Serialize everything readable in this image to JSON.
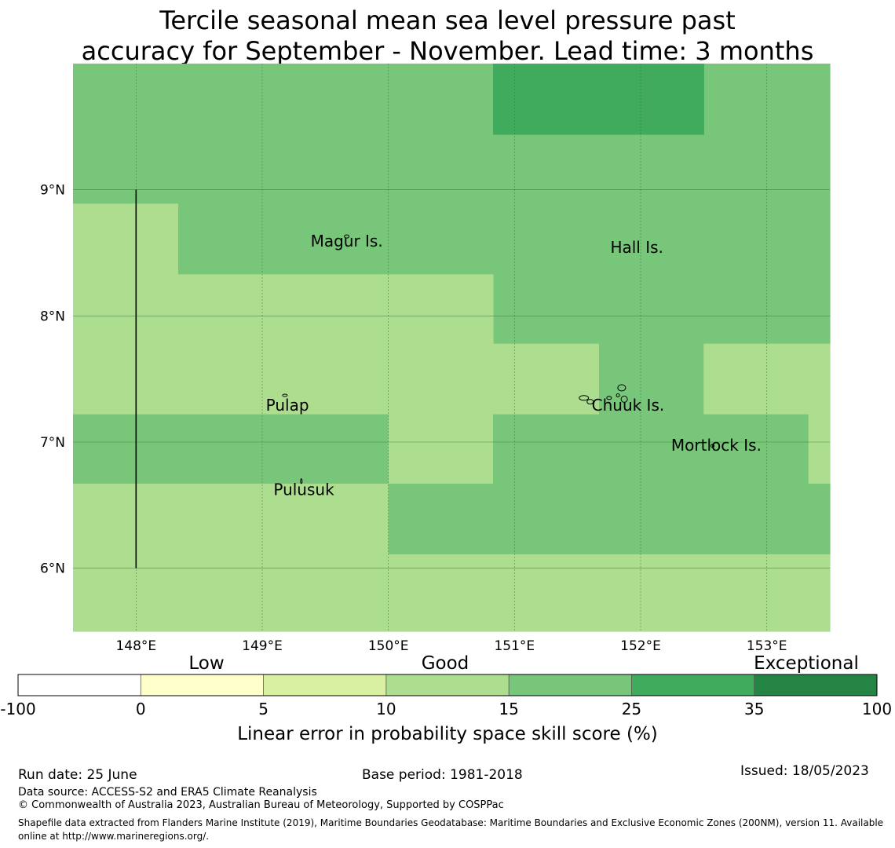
{
  "title_line1": "Tercile seasonal mean sea level pressure past",
  "title_line2": "accuracy for September - November. Lead time: 3 months",
  "colors": {
    "c_-100": "#ffffff",
    "c_0": "#ffffcc",
    "c_5": "#d9f0a3",
    "c_10": "#addd8e",
    "c_15": "#78c679",
    "c_25": "#41ab5d",
    "c_35": "#238443"
  },
  "map": {
    "lon_range": [
      147.5,
      153.5
    ],
    "lat_range": [
      5.5,
      10.0
    ],
    "x_ticks": [
      {
        "lon": 148,
        "label": "148°E"
      },
      {
        "lon": 149,
        "label": "149°E"
      },
      {
        "lon": 150,
        "label": "150°E"
      },
      {
        "lon": 151,
        "label": "151°E"
      },
      {
        "lon": 152,
        "label": "152°E"
      },
      {
        "lon": 153,
        "label": "153°E"
      }
    ],
    "y_ticks": [
      {
        "lat": 9,
        "label": "9°N"
      },
      {
        "lat": 8,
        "label": "8°N"
      },
      {
        "lat": 7,
        "label": "7°N"
      },
      {
        "lat": 6,
        "label": "6°N"
      }
    ],
    "gridlines": true,
    "skill_cells": [
      {
        "lon": [
          147.5,
          151.83
        ],
        "lat": [
          8.89,
          10.0
        ],
        "bin": "15"
      },
      {
        "lon": [
          151.83,
          153.5
        ],
        "lat": [
          7.78,
          10.0
        ],
        "bin": "15"
      },
      {
        "lon": [
          150.83,
          152.5
        ],
        "lat": [
          9.44,
          10.0
        ],
        "bin": "25"
      },
      {
        "lon": [
          148.33,
          151.83
        ],
        "lat": [
          8.33,
          8.89
        ],
        "bin": "15"
      },
      {
        "lon": [
          147.5,
          148.33
        ],
        "lat": [
          8.33,
          8.89
        ],
        "bin": "10"
      },
      {
        "lon": [
          150.83,
          151.83
        ],
        "lat": [
          7.78,
          8.33
        ],
        "bin": "15"
      },
      {
        "lon": [
          147.5,
          150.83
        ],
        "lat": [
          7.22,
          8.33
        ],
        "bin": "10"
      },
      {
        "lon": [
          150.83,
          151.67
        ],
        "lat": [
          7.22,
          7.78
        ],
        "bin": "10"
      },
      {
        "lon": [
          151.67,
          152.5
        ],
        "lat": [
          7.22,
          7.78
        ],
        "bin": "15"
      },
      {
        "lon": [
          152.5,
          153.5
        ],
        "lat": [
          7.22,
          7.78
        ],
        "bin": "10"
      },
      {
        "lon": [
          147.5,
          150.0
        ],
        "lat": [
          6.67,
          7.22
        ],
        "bin": "15"
      },
      {
        "lon": [
          150.0,
          150.83
        ],
        "lat": [
          6.67,
          7.22
        ],
        "bin": "10"
      },
      {
        "lon": [
          150.83,
          153.33
        ],
        "lat": [
          6.67,
          7.22
        ],
        "bin": "15"
      },
      {
        "lon": [
          153.33,
          153.5
        ],
        "lat": [
          6.67,
          7.22
        ],
        "bin": "10"
      },
      {
        "lon": [
          147.5,
          150.0
        ],
        "lat": [
          6.11,
          6.67
        ],
        "bin": "10"
      },
      {
        "lon": [
          150.0,
          153.5
        ],
        "lat": [
          6.11,
          6.67
        ],
        "bin": "15"
      },
      {
        "lon": [
          147.5,
          153.5
        ],
        "lat": [
          5.5,
          6.11
        ],
        "bin": "10"
      }
    ],
    "boundary_line": {
      "lon": 148.0,
      "lat": [
        6.0,
        9.0
      ]
    },
    "places": [
      {
        "name": "Magur Is.",
        "lon": 149.67,
        "lat": 8.55
      },
      {
        "name": "Hall Is.",
        "lon": 151.97,
        "lat": 8.5
      },
      {
        "name": "Pulap",
        "lon": 149.2,
        "lat": 7.25
      },
      {
        "name": "Chuuk Is.",
        "lon": 151.9,
        "lat": 7.25
      },
      {
        "name": "Mortlock Is.",
        "lon": 152.6,
        "lat": 6.93
      },
      {
        "name": "Pulusuk",
        "lon": 149.33,
        "lat": 6.58
      }
    ]
  },
  "colorbar": {
    "category_labels": [
      "Low",
      "Good",
      "Exceptional"
    ],
    "bins": [
      {
        "from": "-100",
        "to": "0",
        "color_key": "c_-100"
      },
      {
        "from": "0",
        "to": "5",
        "color_key": "c_0"
      },
      {
        "from": "5",
        "to": "10",
        "color_key": "c_5"
      },
      {
        "from": "10",
        "to": "15",
        "color_key": "c_10"
      },
      {
        "from": "15",
        "to": "25",
        "color_key": "c_15"
      },
      {
        "from": "25",
        "to": "35",
        "color_key": "c_25"
      },
      {
        "from": "35",
        "to": "100",
        "color_key": "c_35"
      }
    ],
    "tick_labels": [
      "-100",
      "0",
      "5",
      "10",
      "15",
      "25",
      "35",
      "100"
    ],
    "label": "Linear error in probability space skill score (%)"
  },
  "footer": {
    "run_date": "Run date: 25 June",
    "base_period": "Base period: 1981-2018",
    "issued": "Issued: 18/05/2023",
    "data_source": "Data source: ACCESS-S2 and ERA5 Climate Reanalysis",
    "copyright": "© Commonwealth of Australia 2023, Australian Bureau of Meteorology, Supported by COSPPac",
    "shapefile": "Shapefile data extracted from Flanders Marine Institute (2019), Maritime Boundaries Geodatabase: Maritime Boundaries and Exclusive Economic Zones (200NM), version 11. Available online at http://www.marineregions.org/."
  }
}
